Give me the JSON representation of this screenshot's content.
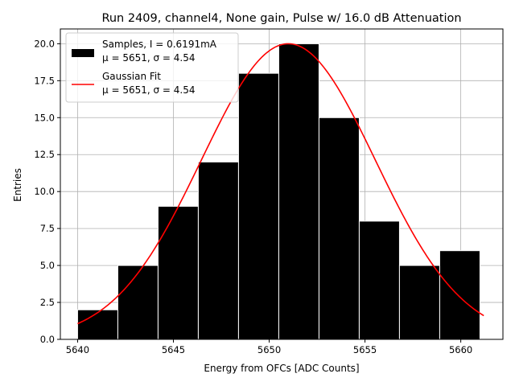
{
  "chart_data": {
    "type": "bar",
    "title": "Run 2409, channel4, None gain, Pulse w/ 16.0 dB Attenuation",
    "xlabel": "Energy from OFCs [ADC Counts]",
    "ylabel": "Entries",
    "xlim": [
      5639.1,
      5662.2
    ],
    "ylim": [
      0,
      21
    ],
    "xticks": [
      "5640",
      "5645",
      "5650",
      "5655",
      "5660"
    ],
    "yticks": [
      "0.0",
      "2.5",
      "5.0",
      "7.5",
      "10.0",
      "12.5",
      "15.0",
      "17.5",
      "20.0"
    ],
    "grid": true,
    "legend_position": "top-left",
    "histogram": {
      "bin_edges": [
        5640.0,
        5642.1,
        5644.2,
        5646.3,
        5648.4,
        5650.5,
        5652.6,
        5654.7,
        5656.8,
        5658.9,
        5661.0
      ],
      "counts": [
        2,
        5,
        9,
        12,
        18,
        20,
        15,
        8,
        5,
        6
      ],
      "color": "#000000",
      "edge_color": "#ffffff"
    },
    "fit": {
      "mu": 5651,
      "sigma": 4.54,
      "amplitude": 20.0,
      "x_range": [
        5640.0,
        5661.2
      ],
      "color": "#ff0000"
    },
    "legend": [
      {
        "label_line1": "Samples, I = 0.6191mA",
        "label_line2": "μ = 5651, σ = 4.54",
        "marker": "bar",
        "color": "#000000"
      },
      {
        "label_line1": "Gaussian Fit",
        "label_line2": "μ = 5651, σ = 4.54",
        "marker": "line",
        "color": "#ff0000"
      }
    ]
  }
}
